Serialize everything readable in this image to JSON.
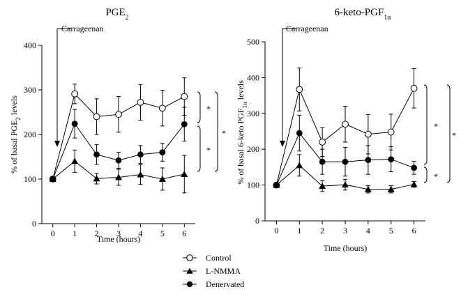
{
  "chart_data": [
    {
      "type": "line",
      "title": "PGE",
      "title_sub": "2",
      "ylabel": "% of basal PGE",
      "ylabel_sub": "2",
      "ylabel_tail": " levels",
      "xlabel": "Time (hours)",
      "x": [
        0,
        1,
        2,
        3,
        4,
        5,
        6
      ],
      "xlim": [
        -0.5,
        6.5
      ],
      "ylim": [
        0,
        400
      ],
      "yticks": [
        0,
        100,
        200,
        300,
        400
      ],
      "annotation": "Carrageenan",
      "series": [
        {
          "name": "Control",
          "marker": "open-circle",
          "values": [
            100,
            291,
            240,
            245,
            272,
            259,
            285
          ],
          "err": [
            0,
            22,
            40,
            40,
            40,
            40,
            42
          ]
        },
        {
          "name": "L-NMMA",
          "marker": "triangle",
          "values": [
            100,
            140,
            101,
            104,
            110,
            100,
            111
          ],
          "err": [
            0,
            25,
            12,
            18,
            22,
            25,
            42
          ]
        },
        {
          "name": "Denervated",
          "marker": "filled-circle",
          "values": [
            100,
            224,
            155,
            142,
            155,
            160,
            223
          ],
          "err": [
            0,
            32,
            22,
            18,
            20,
            20,
            38
          ]
        }
      ],
      "significance": [
        {
          "label": "*",
          "between": [
            "Control",
            "Denervated"
          ]
        },
        {
          "label": "*",
          "between": [
            "Denervated",
            "L-NMMA"
          ]
        },
        {
          "label": "*",
          "between": [
            "Control",
            "L-NMMA"
          ]
        }
      ]
    },
    {
      "type": "line",
      "title": "6-keto-PGF",
      "title_sub": "1α",
      "ylabel": "% of basal 6-keto PGF",
      "ylabel_sub": "1α",
      "ylabel_tail": " levels",
      "xlabel": "Time (hours)",
      "x": [
        0,
        1,
        2,
        3,
        4,
        5,
        6
      ],
      "xlim": [
        -0.5,
        6.5
      ],
      "ylim": [
        0,
        500
      ],
      "yticks": [
        0,
        100,
        200,
        300,
        400,
        500
      ],
      "annotation": "Carrageenan",
      "series": [
        {
          "name": "Control",
          "marker": "open-circle",
          "values": [
            100,
            367,
            220,
            270,
            242,
            248,
            370
          ],
          "err": [
            0,
            60,
            40,
            50,
            55,
            50,
            55
          ]
        },
        {
          "name": "L-NMMA",
          "marker": "triangle",
          "values": [
            100,
            155,
            97,
            101,
            88,
            88,
            102
          ],
          "err": [
            0,
            30,
            15,
            15,
            10,
            10,
            8
          ]
        },
        {
          "name": "Denervated",
          "marker": "filled-circle",
          "values": [
            100,
            245,
            165,
            165,
            170,
            172,
            148
          ],
          "err": [
            0,
            50,
            35,
            40,
            40,
            35,
            18
          ]
        }
      ],
      "significance": [
        {
          "label": "*",
          "between": [
            "Control",
            "Denervated"
          ]
        },
        {
          "label": "*",
          "between": [
            "Denervated",
            "L-NMMA"
          ]
        },
        {
          "label": "*",
          "between": [
            "Control",
            "L-NMMA"
          ]
        }
      ]
    }
  ],
  "legend": {
    "placement": "bottom-center",
    "items": [
      {
        "label": "Control",
        "marker": "open-circle"
      },
      {
        "label": "L-NMMA",
        "marker": "triangle"
      },
      {
        "label": "Denervated",
        "marker": "filled-circle"
      }
    ]
  }
}
